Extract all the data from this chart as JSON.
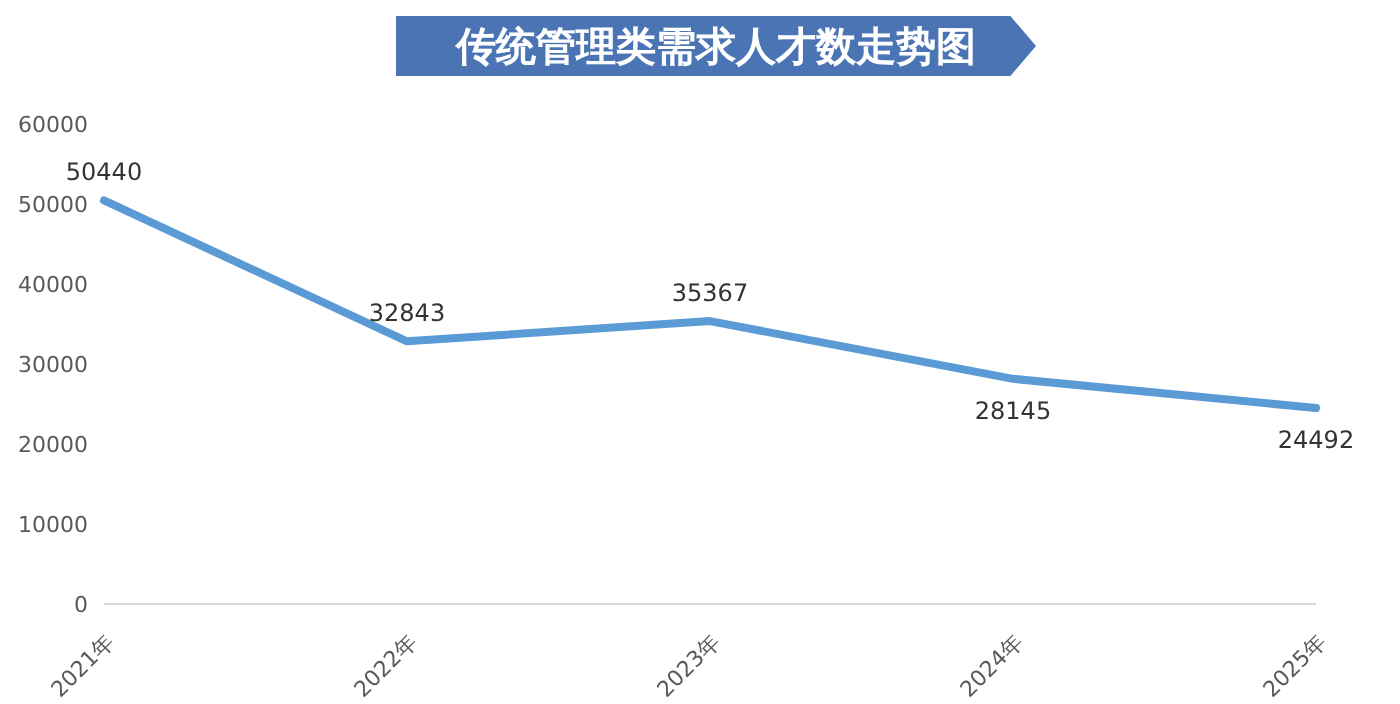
{
  "chart_data": {
    "type": "line",
    "title": "传统管理类需求人才数走势图",
    "categories": [
      "2021年",
      "2022年",
      "2023年",
      "2024年",
      "2025年"
    ],
    "series": [
      {
        "color": "#5b9bd5",
        "values": [
          50440,
          32843,
          35367,
          28145,
          24492
        ]
      }
    ],
    "ylim": [
      0,
      60000
    ],
    "yticks": [
      0,
      10000,
      20000,
      30000,
      40000,
      50000,
      60000
    ],
    "grid": false,
    "legend": false,
    "marker": "none",
    "line_style": "solid",
    "data_labels": true
  }
}
